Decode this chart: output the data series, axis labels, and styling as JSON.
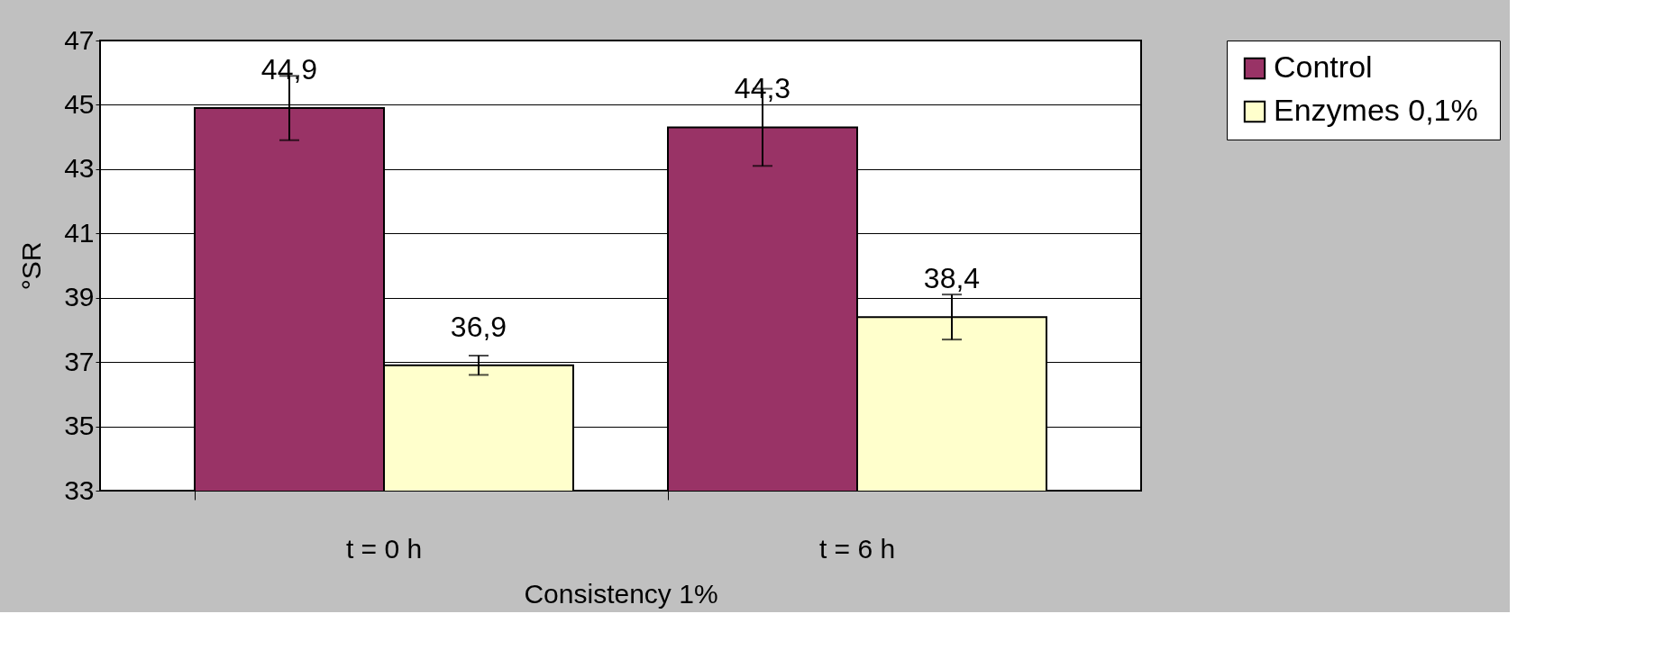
{
  "chart_data": {
    "type": "bar",
    "xlabel": "Consistency 1%",
    "ylabel": "°SR",
    "categories": [
      "t = 0 h",
      "t = 6 h"
    ],
    "series": [
      {
        "name": "Control",
        "color": "#993366",
        "values": [
          44.9,
          44.3
        ],
        "errors": [
          1.0,
          1.2
        ],
        "value_labels": [
          "44,9",
          "44,3"
        ]
      },
      {
        "name": "Enzymes  0,1%",
        "color": "#ffffcc",
        "values": [
          36.9,
          38.4
        ],
        "errors": [
          0.3,
          0.7
        ],
        "value_labels": [
          "36,9",
          "38,4"
        ]
      }
    ],
    "ylim": [
      33,
      47
    ],
    "yticks": [
      33,
      35,
      37,
      39,
      41,
      43,
      45,
      47
    ],
    "grid": "y",
    "legend": "right"
  }
}
